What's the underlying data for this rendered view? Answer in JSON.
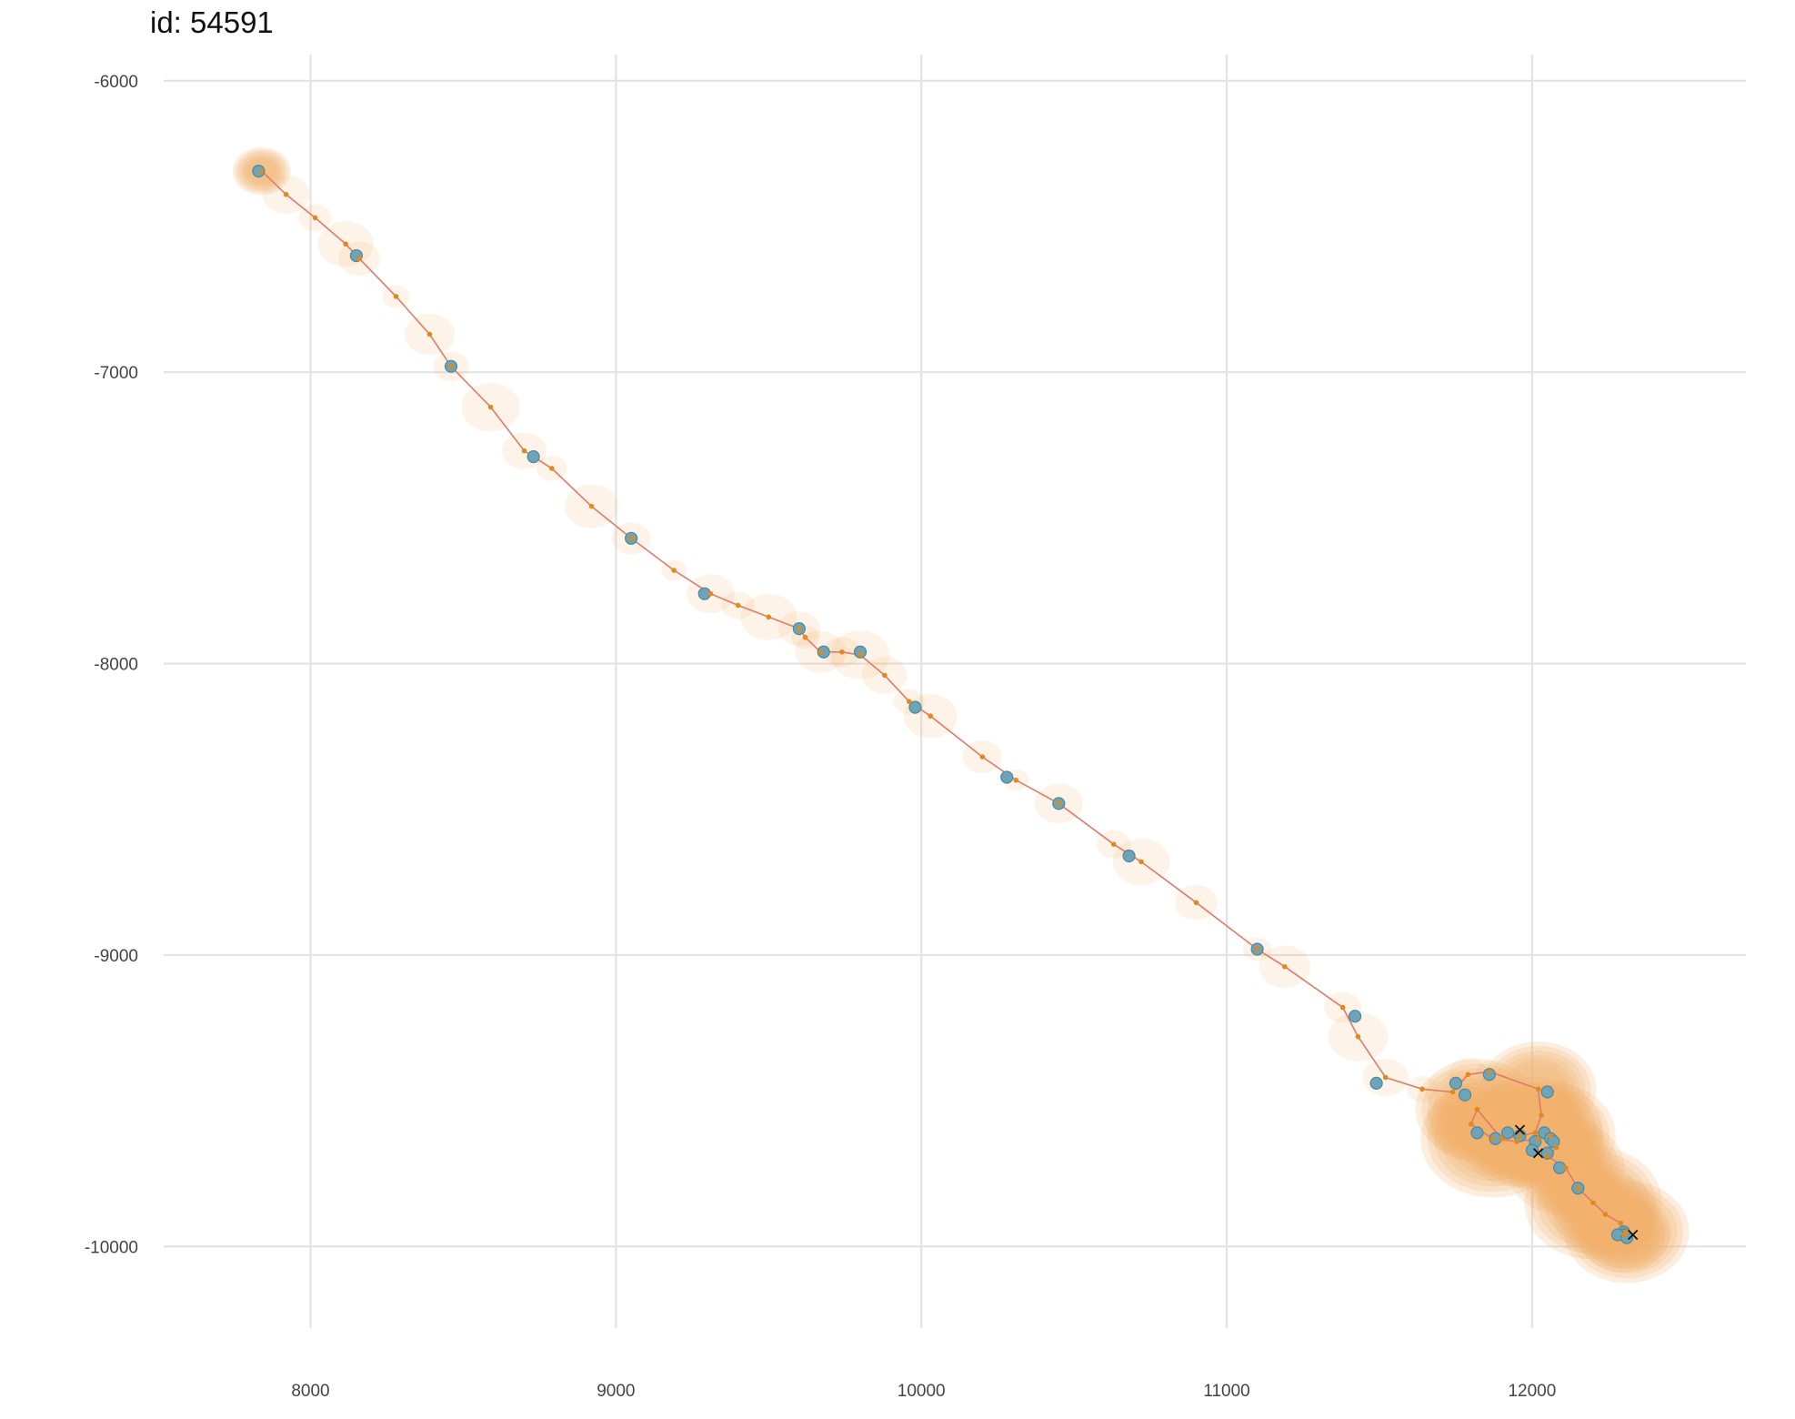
{
  "title": "id: 54591",
  "colors": {
    "path": "#e07a6a",
    "observed": "#6fa3b7",
    "observed_edge": "#4a8aa0",
    "estimate": "#e08a1e",
    "ellipse": "#f2b36f",
    "gridline": "#e3e3e3",
    "cross": "#111111"
  },
  "chart_data": {
    "type": "scatter",
    "xlim": [
      7400,
      12700
    ],
    "ylim": [
      -10280,
      -5910
    ],
    "grid": true,
    "legend": "none",
    "x_ticks": [
      8000,
      9000,
      10000,
      11000,
      12000
    ],
    "y_ticks": [
      -6000,
      -7000,
      -8000,
      -9000,
      -10000
    ],
    "x_tick_labels": [
      "8000",
      "9000",
      "10000",
      "11000",
      "12000"
    ],
    "y_tick_labels": [
      "-6000",
      "-7000",
      "-8000",
      "-9000",
      "-10000"
    ],
    "track": [
      [
        7840,
        -6310
      ],
      [
        7920,
        -6390
      ],
      [
        8015,
        -6470
      ],
      [
        8115,
        -6560
      ],
      [
        8160,
        -6610
      ],
      [
        8280,
        -6740
      ],
      [
        8390,
        -6870
      ],
      [
        8460,
        -6980
      ],
      [
        8590,
        -7120
      ],
      [
        8700,
        -7270
      ],
      [
        8790,
        -7330
      ],
      [
        8920,
        -7460
      ],
      [
        9050,
        -7570
      ],
      [
        9190,
        -7680
      ],
      [
        9310,
        -7760
      ],
      [
        9400,
        -7800
      ],
      [
        9500,
        -7840
      ],
      [
        9600,
        -7880
      ],
      [
        9620,
        -7910
      ],
      [
        9670,
        -7960
      ],
      [
        9740,
        -7960
      ],
      [
        9800,
        -7970
      ],
      [
        9880,
        -8040
      ],
      [
        9960,
        -8130
      ],
      [
        10030,
        -8180
      ],
      [
        10200,
        -8320
      ],
      [
        10310,
        -8400
      ],
      [
        10450,
        -8480
      ],
      [
        10630,
        -8620
      ],
      [
        10720,
        -8680
      ],
      [
        10900,
        -8820
      ],
      [
        11100,
        -8980
      ],
      [
        11190,
        -9040
      ],
      [
        11380,
        -9180
      ],
      [
        11430,
        -9280
      ],
      [
        11520,
        -9420
      ],
      [
        11640,
        -9460
      ],
      [
        11740,
        -9470
      ],
      [
        11790,
        -9410
      ],
      [
        11860,
        -9400
      ],
      [
        12020,
        -9460
      ],
      [
        12030,
        -9550
      ],
      [
        12010,
        -9610
      ],
      [
        11960,
        -9620
      ],
      [
        11900,
        -9630
      ],
      [
        11820,
        -9530
      ],
      [
        11800,
        -9580
      ],
      [
        11870,
        -9630
      ],
      [
        11950,
        -9640
      ],
      [
        12020,
        -9630
      ],
      [
        12060,
        -9620
      ],
      [
        12080,
        -9660
      ],
      [
        12050,
        -9690
      ],
      [
        12110,
        -9730
      ],
      [
        12150,
        -9800
      ],
      [
        12200,
        -9850
      ],
      [
        12240,
        -9890
      ],
      [
        12290,
        -9920
      ],
      [
        12310,
        -9950
      ],
      [
        12300,
        -9960
      ]
    ],
    "observations": [
      [
        7830,
        -6310
      ],
      [
        8150,
        -6600
      ],
      [
        8460,
        -6980
      ],
      [
        8730,
        -7290
      ],
      [
        9050,
        -7570
      ],
      [
        9290,
        -7760
      ],
      [
        9600,
        -7880
      ],
      [
        9680,
        -7960
      ],
      [
        9800,
        -7960
      ],
      [
        9980,
        -8150
      ],
      [
        10280,
        -8390
      ],
      [
        10450,
        -8480
      ],
      [
        10680,
        -8660
      ],
      [
        11100,
        -8980
      ],
      [
        11420,
        -9210
      ],
      [
        11490,
        -9440
      ],
      [
        11750,
        -9440
      ],
      [
        11780,
        -9480
      ],
      [
        11860,
        -9410
      ],
      [
        12050,
        -9470
      ],
      [
        11820,
        -9610
      ],
      [
        11880,
        -9630
      ],
      [
        11920,
        -9610
      ],
      [
        11960,
        -9620
      ],
      [
        12010,
        -9640
      ],
      [
        12040,
        -9610
      ],
      [
        12060,
        -9630
      ],
      [
        12070,
        -9640
      ],
      [
        12000,
        -9670
      ],
      [
        12050,
        -9680
      ],
      [
        12090,
        -9730
      ],
      [
        12150,
        -9800
      ],
      [
        12300,
        -9950
      ],
      [
        12300,
        -9960
      ],
      [
        12280,
        -9960
      ],
      [
        12310,
        -9970
      ]
    ],
    "crosses": [
      [
        11960,
        -9600
      ],
      [
        12020,
        -9680
      ],
      [
        12330,
        -9960
      ]
    ]
  }
}
